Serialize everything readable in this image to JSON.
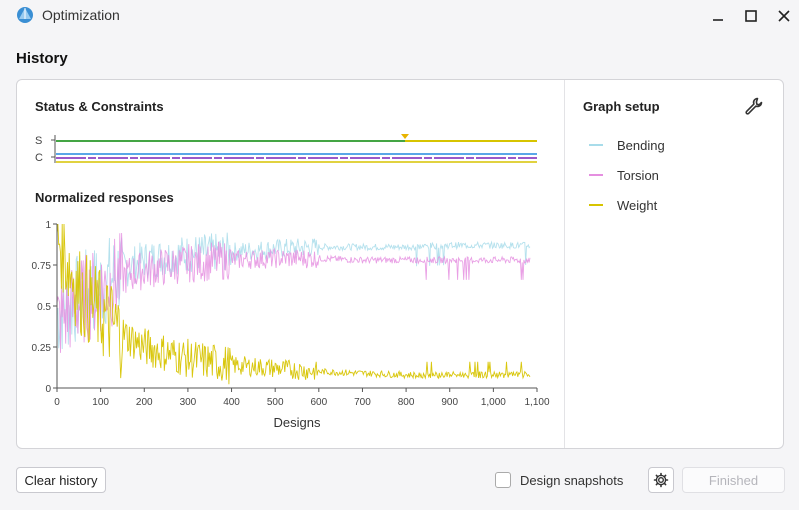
{
  "window": {
    "title": "Optimization"
  },
  "section": {
    "title": "History"
  },
  "status": {
    "heading": "Status & Constraints",
    "row_labels": [
      "S",
      "C"
    ]
  },
  "responses": {
    "heading": "Normalized responses"
  },
  "graph_setup": {
    "heading": "Graph setup",
    "legend": [
      {
        "label": "Bending",
        "color": "#a8dcea"
      },
      {
        "label": "Torsion",
        "color": "#e58fe0"
      },
      {
        "label": "Weight",
        "color": "#d7c400"
      }
    ]
  },
  "footer": {
    "clear_label": "Clear history",
    "snapshots_label": "Design snapshots",
    "finished_label": "Finished"
  },
  "chart_data": {
    "type": "line",
    "xlabel": "Designs",
    "ylabel": "",
    "xlim": [
      0,
      1100
    ],
    "ylim": [
      0,
      1
    ],
    "x_ticks": [
      "0",
      "100",
      "200",
      "300",
      "400",
      "500",
      "600",
      "700",
      "800",
      "900",
      "1,000",
      "1,100"
    ],
    "y_ticks": [
      "0",
      "0.25",
      "0.5",
      "0.75",
      "1"
    ],
    "series": [
      {
        "name": "Bending",
        "color": "#a8dcea",
        "x": [
          0,
          50,
          100,
          150,
          200,
          300,
          400,
          500,
          600,
          700,
          800,
          900,
          1000,
          1100
        ],
        "values": [
          0.45,
          0.55,
          0.62,
          0.72,
          0.78,
          0.82,
          0.83,
          0.85,
          0.86,
          0.86,
          0.86,
          0.87,
          0.87,
          0.87
        ]
      },
      {
        "name": "Torsion",
        "color": "#e58fe0",
        "x": [
          0,
          50,
          100,
          150,
          200,
          300,
          400,
          500,
          600,
          700,
          800,
          900,
          1000,
          1100
        ],
        "values": [
          0.4,
          0.52,
          0.6,
          0.68,
          0.72,
          0.76,
          0.78,
          0.79,
          0.79,
          0.78,
          0.78,
          0.78,
          0.78,
          0.78
        ]
      },
      {
        "name": "Weight",
        "color": "#d7c400",
        "x": [
          0,
          20,
          50,
          100,
          150,
          200,
          300,
          400,
          500,
          600,
          700,
          800,
          900,
          1000,
          1100
        ],
        "values": [
          0.95,
          0.8,
          0.6,
          0.45,
          0.33,
          0.25,
          0.18,
          0.14,
          0.12,
          0.1,
          0.09,
          0.08,
          0.08,
          0.08,
          0.08
        ]
      }
    ],
    "grid": false,
    "legend": "right"
  }
}
